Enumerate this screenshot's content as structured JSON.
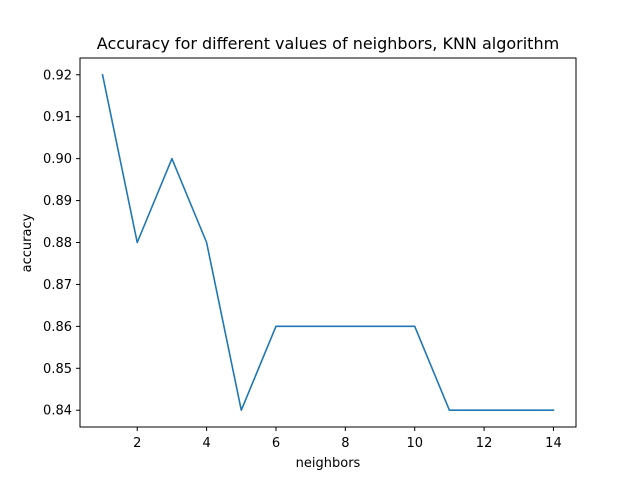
{
  "chart_data": {
    "type": "line",
    "title": "Accuracy for different values of neighbors, KNN algorithm",
    "xlabel": "neighbors",
    "ylabel": "accuracy",
    "xlim": [
      0.35,
      14.65
    ],
    "ylim": [
      0.836,
      0.924
    ],
    "xticks": [
      2,
      4,
      6,
      8,
      10,
      12,
      14
    ],
    "xtick_labels": [
      "2",
      "4",
      "6",
      "8",
      "10",
      "12",
      "14"
    ],
    "yticks": [
      0.84,
      0.85,
      0.86,
      0.87,
      0.88,
      0.89,
      0.9,
      0.91,
      0.92
    ],
    "ytick_labels": [
      "0.84",
      "0.85",
      "0.86",
      "0.87",
      "0.88",
      "0.89",
      "0.90",
      "0.91",
      "0.92"
    ],
    "grid": false,
    "legend": "none",
    "series": [
      {
        "color": "#1f77b4",
        "x": [
          1,
          2,
          3,
          4,
          5,
          6,
          7,
          8,
          9,
          10,
          11,
          12,
          13,
          14
        ],
        "y": [
          0.92,
          0.88,
          0.9,
          0.88,
          0.84,
          0.86,
          0.86,
          0.86,
          0.86,
          0.86,
          0.84,
          0.84,
          0.84,
          0.84
        ]
      }
    ]
  }
}
